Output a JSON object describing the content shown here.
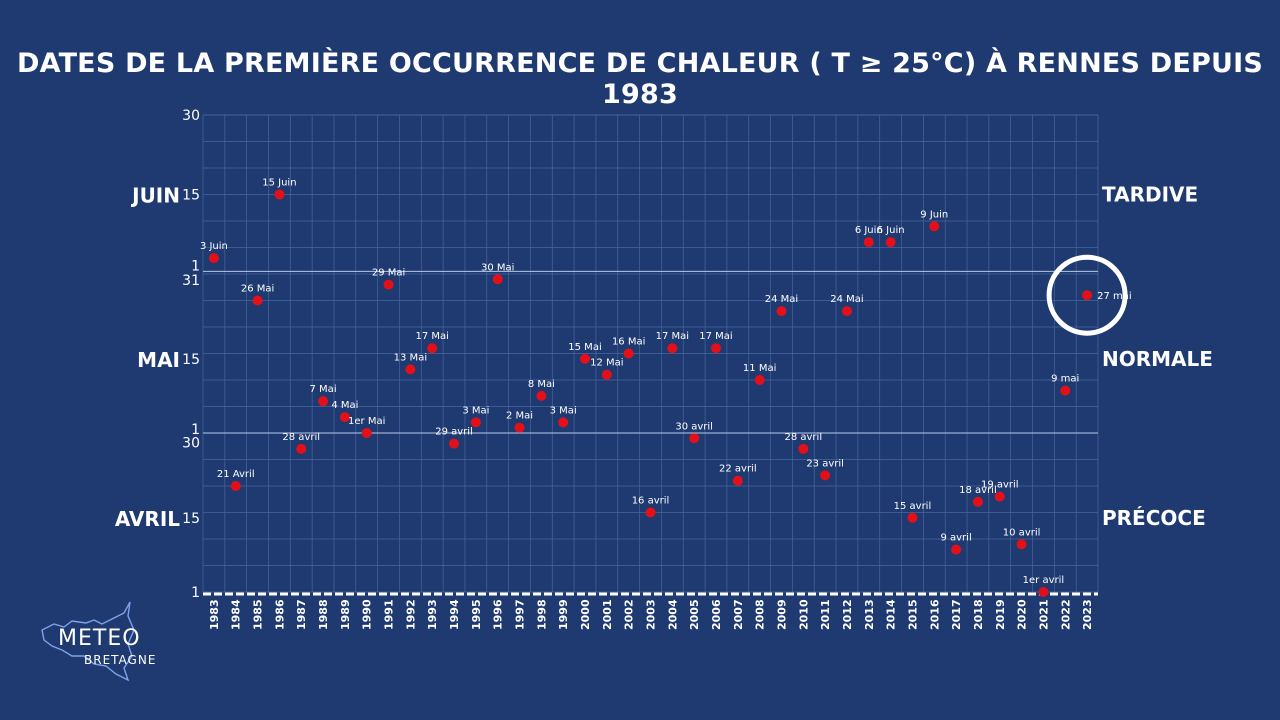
{
  "title": "DATES DE LA PREMIÈRE OCCURRENCE DE CHALEUR ( T ≥ 25°C) À RENNES DEPUIS 1983",
  "colors": {
    "background": "#1f3a70",
    "point": "#e3101a",
    "grid": "#4a6aa6",
    "highlight": "#ffffff"
  },
  "logo": {
    "name": "METEO",
    "sub": "BRETAGNE",
    "icon": "brittany-map-icon"
  },
  "chart_data": {
    "type": "scatter",
    "title": "DATES DE LA PREMIÈRE OCCURRENCE DE CHALEUR ( T ≥ 25°C) À RENNES DEPUIS 1983",
    "x_categories": [
      "1983",
      "1984",
      "1985",
      "1986",
      "1987",
      "1988",
      "1989",
      "1990",
      "1991",
      "1992",
      "1993",
      "1994",
      "1995",
      "1996",
      "1997",
      "1998",
      "1999",
      "2000",
      "2001",
      "2002",
      "2003",
      "2004",
      "2005",
      "2006",
      "2007",
      "2008",
      "2009",
      "2010",
      "2011",
      "2012",
      "2013",
      "2014",
      "2015",
      "2016",
      "2017",
      "2018",
      "2019",
      "2020",
      "2021",
      "2022",
      "2023"
    ],
    "y_range": [
      "1 avril",
      "30 juin"
    ],
    "y_ticks": [
      {
        "label": "1",
        "day": 1
      },
      {
        "label": "15",
        "day": 15
      },
      {
        "label": "30",
        "day": 30
      },
      {
        "label": "1",
        "day": 31
      },
      {
        "label": "15",
        "day": 45
      },
      {
        "label": "31",
        "day": 61
      },
      {
        "label": "1",
        "day": 62
      },
      {
        "label": "15",
        "day": 76
      },
      {
        "label": "30",
        "day": 91
      }
    ],
    "month_labels": [
      {
        "label": "AVRIL",
        "day": 15
      },
      {
        "label": "MAI",
        "day": 45
      },
      {
        "label": "JUIN",
        "day": 76
      }
    ],
    "category_labels": [
      {
        "label": "PRÉCOCE",
        "day": 15
      },
      {
        "label": "NORMALE",
        "day": 45
      },
      {
        "label": "TARDIVE",
        "day": 76
      }
    ],
    "grid": true,
    "points": [
      {
        "year": "1983",
        "day": 64,
        "label": "3 Juin"
      },
      {
        "year": "1984",
        "day": 21,
        "label": "21 Avril"
      },
      {
        "year": "1985",
        "day": 56,
        "label": "26 Mai"
      },
      {
        "year": "1986",
        "day": 76,
        "label": "15 Juin"
      },
      {
        "year": "1987",
        "day": 28,
        "label": "28 avril"
      },
      {
        "year": "1988",
        "day": 37,
        "label": "7 Mai"
      },
      {
        "year": "1989",
        "day": 34,
        "label": "4 Mai"
      },
      {
        "year": "1990",
        "day": 31,
        "label": "1er Mai"
      },
      {
        "year": "1991",
        "day": 59,
        "label": "29 Mai"
      },
      {
        "year": "1992",
        "day": 43,
        "label": "13 Mai"
      },
      {
        "year": "1993",
        "day": 47,
        "label": "17 Mai"
      },
      {
        "year": "1994",
        "day": 29,
        "label": "29 avril"
      },
      {
        "year": "1995",
        "day": 33,
        "label": "3 Mai"
      },
      {
        "year": "1996",
        "day": 60,
        "label": "30 Mai"
      },
      {
        "year": "1997",
        "day": 32,
        "label": "2 Mai"
      },
      {
        "year": "1998",
        "day": 38,
        "label": "8 Mai"
      },
      {
        "year": "1999",
        "day": 33,
        "label": "3 Mai"
      },
      {
        "year": "2000",
        "day": 45,
        "label": "15 Mai"
      },
      {
        "year": "2001",
        "day": 42,
        "label": "12 Mai"
      },
      {
        "year": "2002",
        "day": 46,
        "label": "16 Mai"
      },
      {
        "year": "2003",
        "day": 16,
        "label": "16 avril"
      },
      {
        "year": "2004",
        "day": 47,
        "label": "17 Mai"
      },
      {
        "year": "2005",
        "day": 30,
        "label": "30 avril"
      },
      {
        "year": "2006",
        "day": 47,
        "label": "17 Mai"
      },
      {
        "year": "2007",
        "day": 22,
        "label": "22 avril"
      },
      {
        "year": "2008",
        "day": 41,
        "label": "11 Mai"
      },
      {
        "year": "2009",
        "day": 54,
        "label": "24 Mai"
      },
      {
        "year": "2010",
        "day": 28,
        "label": "28 avril"
      },
      {
        "year": "2011",
        "day": 23,
        "label": "23 avril"
      },
      {
        "year": "2012",
        "day": 54,
        "label": "24 Mai"
      },
      {
        "year": "2013",
        "day": 67,
        "label": "6 Juin"
      },
      {
        "year": "2014",
        "day": 67,
        "label": "6 Juin"
      },
      {
        "year": "2015",
        "day": 15,
        "label": "15 avril"
      },
      {
        "year": "2016",
        "day": 70,
        "label": "9 Juin"
      },
      {
        "year": "2017",
        "day": 9,
        "label": "9 avril"
      },
      {
        "year": "2018",
        "day": 18,
        "label": "18 avril"
      },
      {
        "year": "2019",
        "day": 19,
        "label": "19 avril"
      },
      {
        "year": "2020",
        "day": 10,
        "label": "10 avril"
      },
      {
        "year": "2021",
        "day": 1,
        "label": "1er avril"
      },
      {
        "year": "2022",
        "day": 39,
        "label": "9 mai"
      },
      {
        "year": "2023",
        "day": 57,
        "label": "27 mai",
        "highlight": true
      }
    ]
  }
}
